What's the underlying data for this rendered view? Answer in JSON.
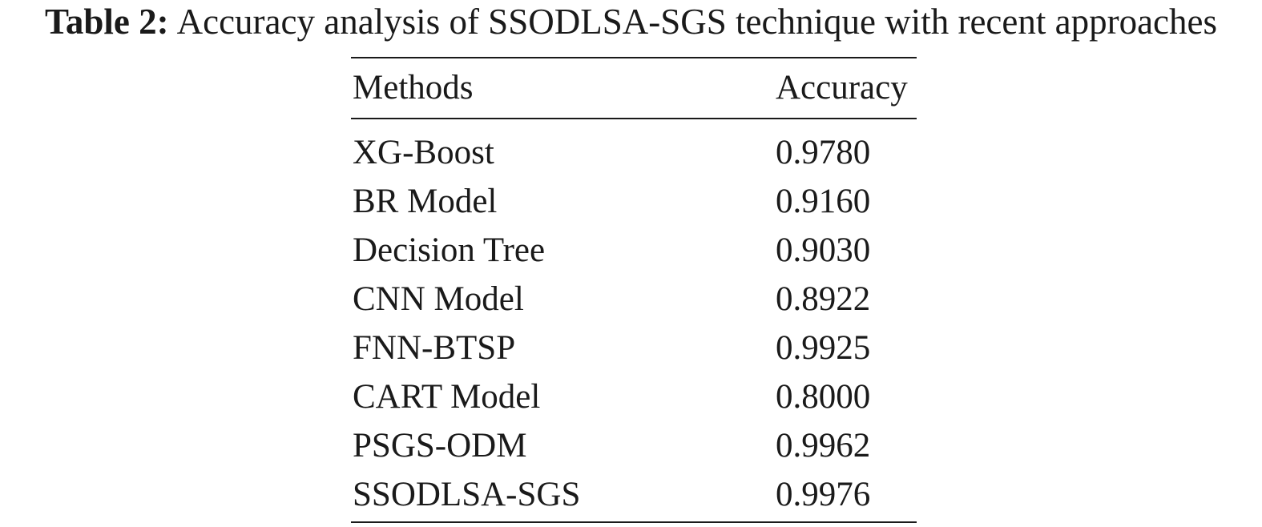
{
  "caption": {
    "label": "Table 2:",
    "text": "Accuracy analysis of SSODLSA-SGS technique with recent approaches"
  },
  "table": {
    "headers": {
      "method": "Methods",
      "accuracy": "Accuracy"
    },
    "rows": [
      {
        "method": "XG-Boost",
        "accuracy": "0.9780"
      },
      {
        "method": "BR Model",
        "accuracy": "0.9160"
      },
      {
        "method": "Decision Tree",
        "accuracy": "0.9030"
      },
      {
        "method": "CNN Model",
        "accuracy": "0.8922"
      },
      {
        "method": "FNN-BTSP",
        "accuracy": "0.9925"
      },
      {
        "method": "CART Model",
        "accuracy": "0.8000"
      },
      {
        "method": "PSGS-ODM",
        "accuracy": "0.9962"
      },
      {
        "method": "SSODLSA-SGS",
        "accuracy": "0.9976"
      }
    ]
  }
}
